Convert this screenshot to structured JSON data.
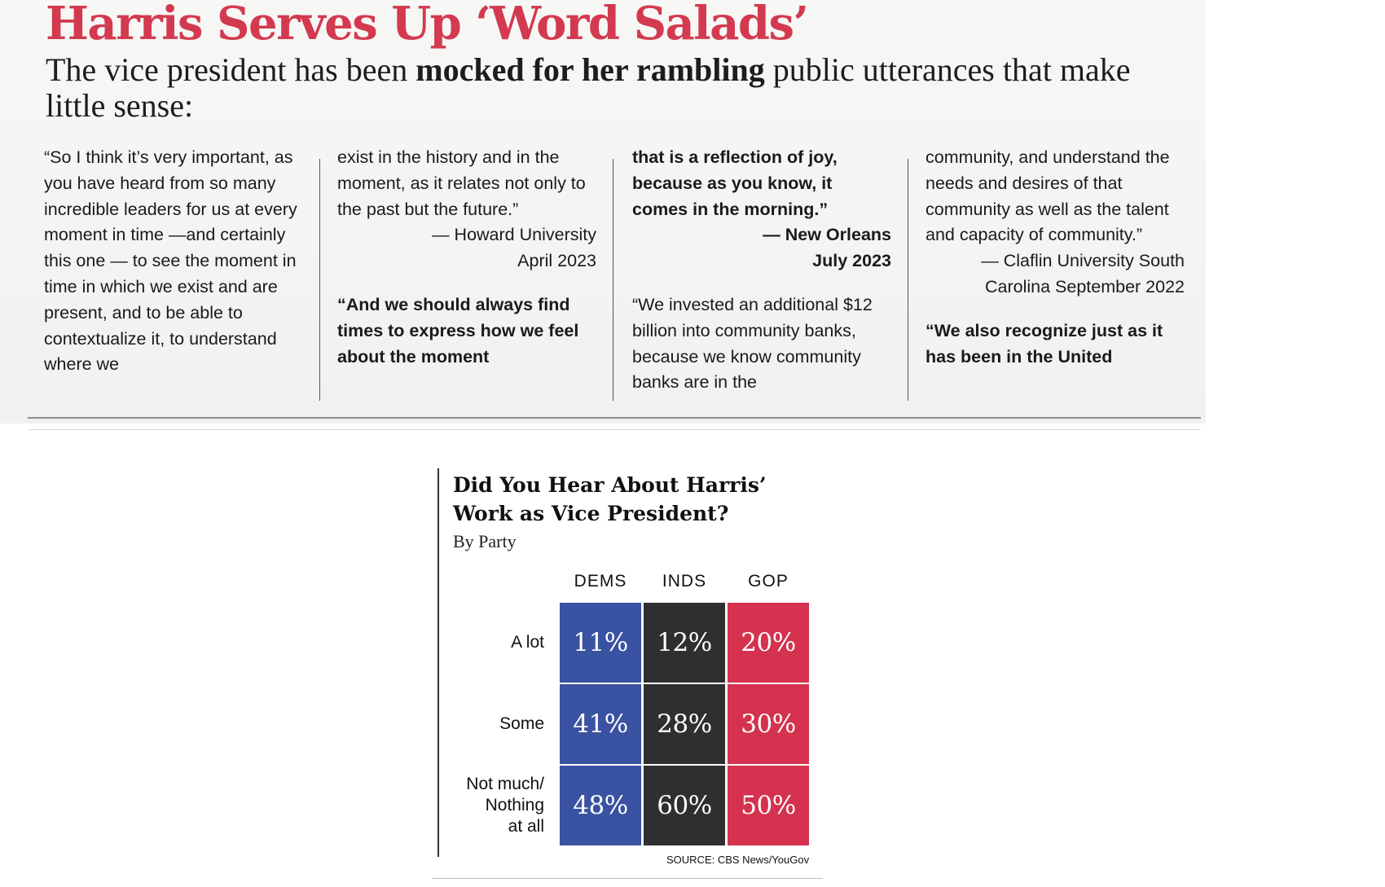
{
  "article": {
    "headline": "Harris Serves Up ‘Word Salads’",
    "deck": {
      "before": "The vice president has been ",
      "emphasis": "mocked for her rambling",
      "after": " public utterances that make little sense:"
    },
    "columns": [
      {
        "quote_1": "“So I think it’s very important, as you have heard from so many incredible leaders for us at every moment in time —and certainly this one — to see the moment in time in which we exist and are present, and to be able to contextualize it, to understand where we"
      },
      {
        "quote_1_cont": "exist in the history and in the moment, as it relates not only to the past but the future.”",
        "attribution": "— Howard University",
        "date": "April 2023",
        "quote_2": "“And we should always find times to express how we feel about the moment"
      },
      {
        "quote_2_cont": "that is a reflection of joy, because as you know, it comes in the morning.”",
        "attribution": "— New Orleans",
        "date": "July 2023",
        "quote_3": "“We invested an additional $12 billion into community banks, because we know community banks are in the"
      },
      {
        "quote_3_cont": "community, and understand the needs and desires of that community as well as the talent and capacity of community.”",
        "attribution": "— Claflin University South",
        "date": "Carolina September 2022",
        "quote_4": "“We also recognize just as it has been in the United"
      }
    ]
  },
  "chart": {
    "title": "Did You Hear About Harris’ Work as Vice President?",
    "subtitle": "By Party",
    "source": "SOURCE: CBS News/YouGov",
    "colors": {
      "DEMS": "#3a52a2",
      "INDS": "#2f2f31",
      "GOP": "#d4324e"
    }
  },
  "chart_data": {
    "type": "table",
    "title": "Did You Hear About Harris’ Work as Vice President?",
    "subtitle": "By Party",
    "columns": [
      "DEMS",
      "INDS",
      "GOP"
    ],
    "rows": [
      "A lot",
      "Some",
      "Not much/ Nothing at all"
    ],
    "values": [
      [
        "11%",
        "12%",
        "20%"
      ],
      [
        "41%",
        "28%",
        "30%"
      ],
      [
        "48%",
        "60%",
        "50%"
      ]
    ]
  }
}
